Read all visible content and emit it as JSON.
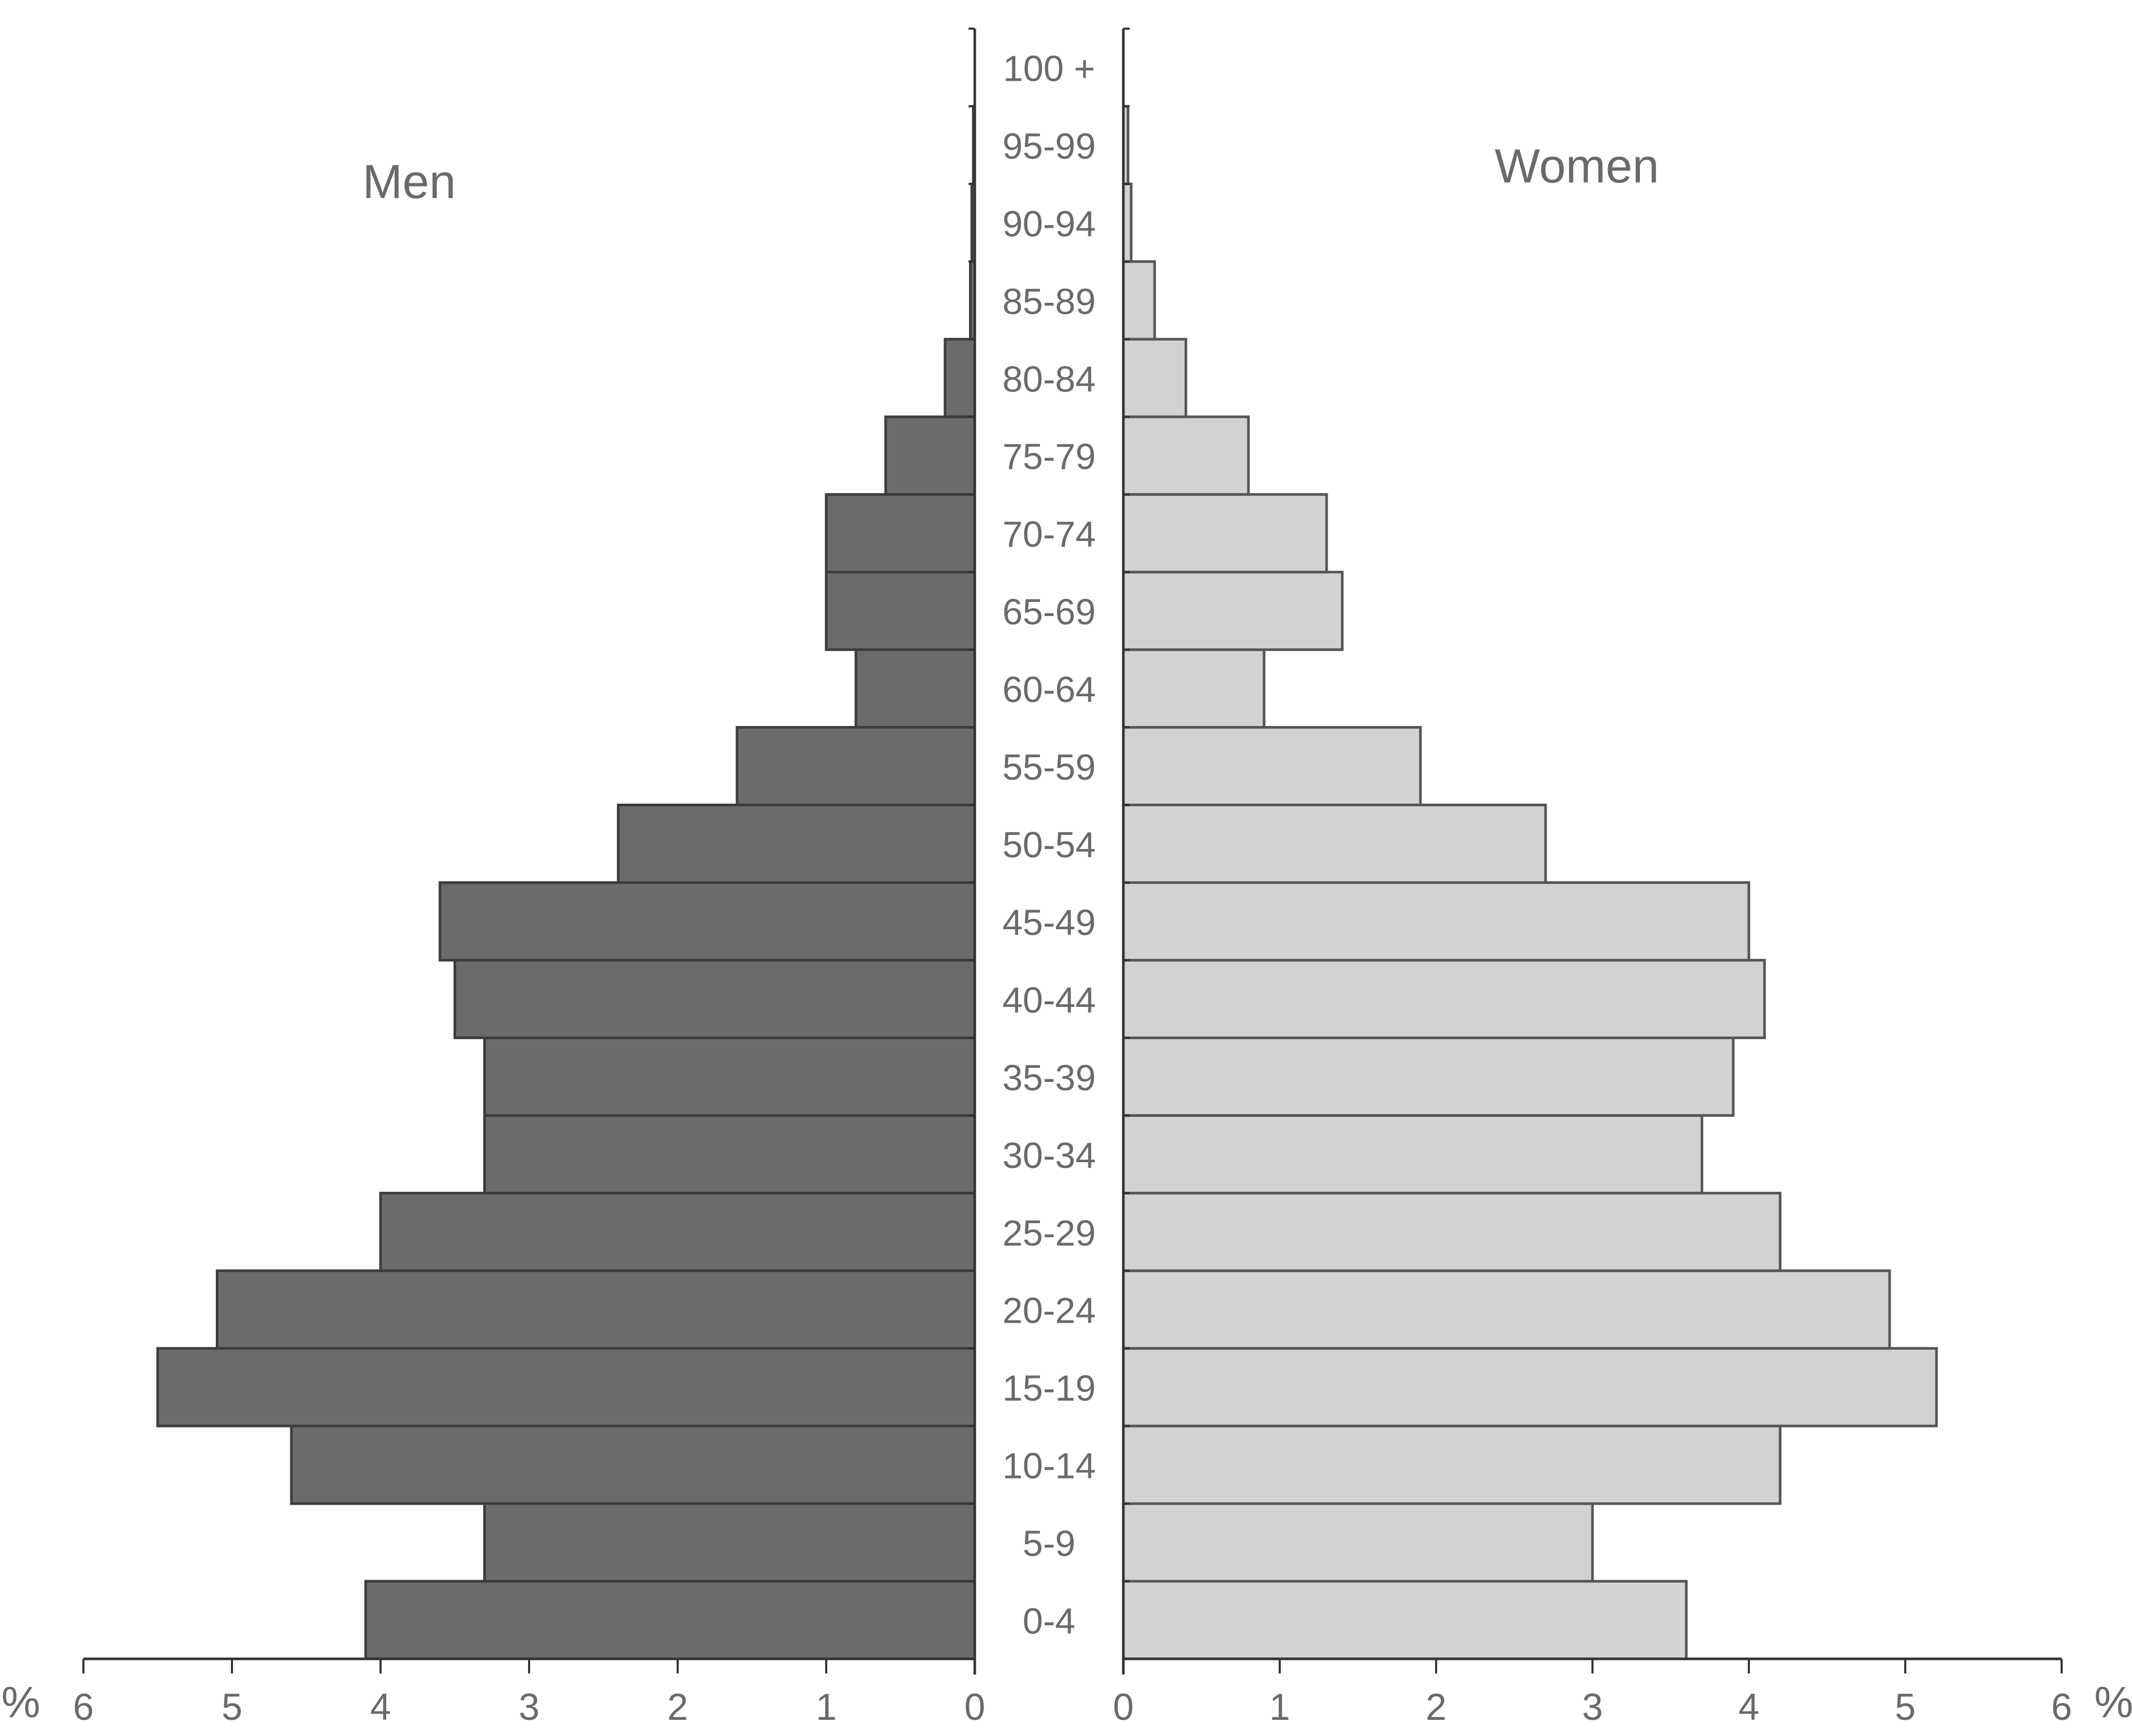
{
  "chart_data": {
    "type": "bar",
    "orientation": "horizontal",
    "layout": "population-pyramid",
    "categories": [
      "0-4",
      "5-9",
      "10-14",
      "15-19",
      "20-24",
      "25-29",
      "30-34",
      "35-39",
      "40-44",
      "45-49",
      "50-54",
      "55-59",
      "60-64",
      "65-69",
      "70-74",
      "75-79",
      "80-84",
      "85-89",
      "90-94",
      "95-99",
      "100 +"
    ],
    "series": [
      {
        "name": "Men",
        "side": "left",
        "color": "#6b6b6b",
        "values": [
          4.1,
          3.3,
          4.6,
          5.5,
          5.1,
          4.0,
          3.3,
          3.3,
          3.5,
          3.6,
          2.4,
          1.6,
          0.8,
          1.0,
          1.0,
          0.6,
          0.2,
          0.03,
          0.02,
          0.01,
          0.0
        ]
      },
      {
        "name": "Women",
        "side": "right",
        "color": "#d2d2d2",
        "values": [
          3.6,
          3.0,
          4.2,
          5.2,
          4.9,
          4.2,
          3.7,
          3.9,
          4.1,
          4.0,
          2.7,
          1.9,
          0.9,
          1.4,
          1.3,
          0.8,
          0.4,
          0.2,
          0.05,
          0.03,
          0.0
        ]
      }
    ],
    "xlim": [
      0,
      6
    ],
    "x_ticks": [
      "0",
      "1",
      "2",
      "3",
      "4",
      "5",
      "6"
    ],
    "unit_label": "%",
    "grid": false
  }
}
